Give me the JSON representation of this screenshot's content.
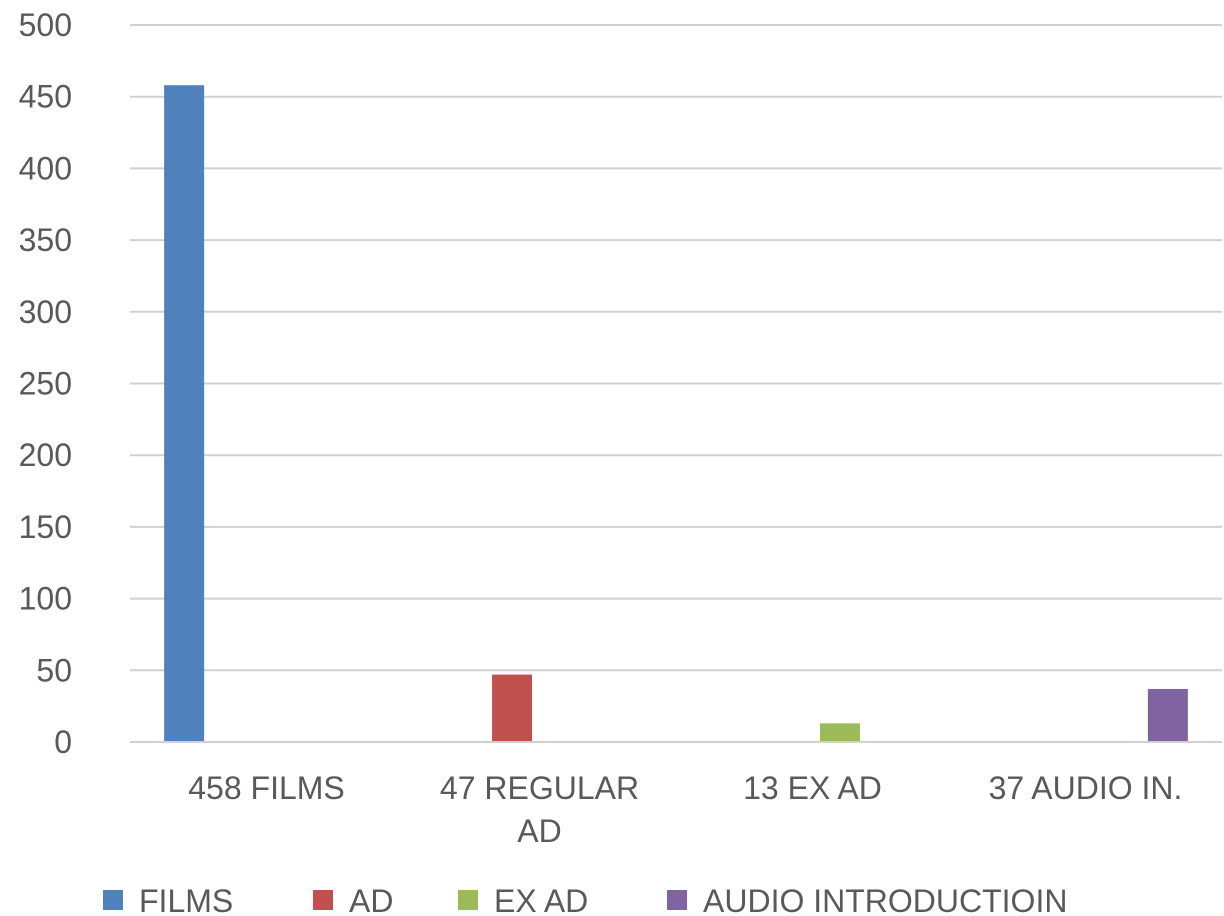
{
  "chart_data": {
    "type": "bar",
    "categories": [
      [
        "458 FILMS"
      ],
      [
        "47 REGULAR",
        "AD"
      ],
      [
        "13 EX AD"
      ],
      [
        "37 AUDIO IN."
      ]
    ],
    "series": [
      {
        "name": "FILMS",
        "color": "#4F81BD",
        "values": [
          458,
          0,
          0,
          0
        ]
      },
      {
        "name": "AD",
        "color": "#C0504D",
        "values": [
          0,
          47,
          0,
          0
        ]
      },
      {
        "name": "EX AD",
        "color": "#9BBB59",
        "values": [
          0,
          0,
          13,
          0
        ]
      },
      {
        "name": "AUDIO INTRODUCTIOIN",
        "color": "#8064A2",
        "values": [
          0,
          0,
          0,
          37
        ]
      }
    ],
    "ylim": [
      0,
      500
    ],
    "yticks": [
      0,
      50,
      100,
      150,
      200,
      250,
      300,
      350,
      400,
      450,
      500
    ],
    "grid": true,
    "legend_position": "bottom"
  }
}
